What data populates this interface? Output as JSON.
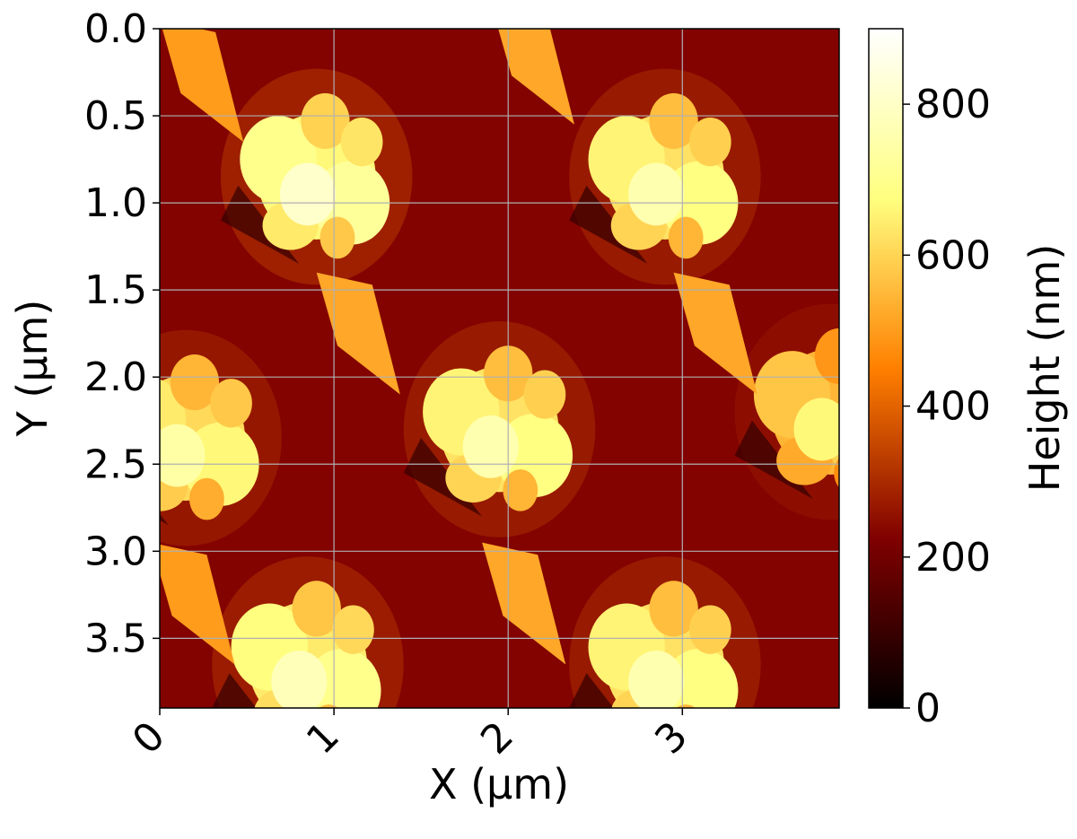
{
  "chart_data": {
    "type": "heatmap",
    "title": "",
    "xlabel": "X (µm)",
    "ylabel": "Y (µm)",
    "colorbar_label": "Height (nm)",
    "colormap": "afmhot",
    "grid": true,
    "xlim": [
      0,
      3.9
    ],
    "ylim": [
      3.9,
      0
    ],
    "x_ticks": [
      0,
      1,
      2,
      3
    ],
    "x_tick_labels": [
      "0",
      "1",
      "2",
      "3"
    ],
    "y_ticks": [
      0.0,
      0.5,
      1.0,
      1.5,
      2.0,
      2.5,
      3.0,
      3.5
    ],
    "y_tick_labels": [
      "0.0",
      "0.5",
      "1.0",
      "1.5",
      "2.0",
      "2.5",
      "3.0",
      "3.5"
    ],
    "colorbar_range": [
      0,
      900
    ],
    "colorbar_ticks": [
      0,
      200,
      400,
      600,
      800
    ],
    "colorbar_tick_labels": [
      "0",
      "200",
      "400",
      "600",
      "800"
    ],
    "background_height_nm": 230,
    "features": [
      {
        "kind": "cluster",
        "center_x": 0.9,
        "center_y": 0.85,
        "peak_height_nm": 850
      },
      {
        "kind": "cluster",
        "center_x": 2.9,
        "center_y": 0.85,
        "peak_height_nm": 800
      },
      {
        "kind": "cluster",
        "center_x": 0.15,
        "center_y": 2.35,
        "peak_height_nm": 780
      },
      {
        "kind": "cluster",
        "center_x": 1.95,
        "center_y": 2.3,
        "peak_height_nm": 800
      },
      {
        "kind": "cluster",
        "center_x": 0.85,
        "center_y": 3.65,
        "peak_height_nm": 820
      },
      {
        "kind": "cluster",
        "center_x": 2.9,
        "center_y": 3.65,
        "peak_height_nm": 800
      },
      {
        "kind": "cluster",
        "center_x": 3.85,
        "center_y": 2.2,
        "peak_height_nm": 700
      },
      {
        "kind": "tail",
        "center_x": 1.1,
        "center_y": 1.75,
        "peak_height_nm": 520
      },
      {
        "kind": "tail",
        "center_x": 3.15,
        "center_y": 1.75,
        "peak_height_nm": 520
      },
      {
        "kind": "tail",
        "center_x": 2.05,
        "center_y": 3.3,
        "peak_height_nm": 520
      },
      {
        "kind": "tail",
        "center_x": 0.15,
        "center_y": 3.3,
        "peak_height_nm": 500
      },
      {
        "kind": "tail",
        "center_x": 0.2,
        "center_y": 0.3,
        "peak_height_nm": 500
      },
      {
        "kind": "tail",
        "center_x": 2.1,
        "center_y": 0.2,
        "peak_height_nm": 520
      }
    ]
  }
}
